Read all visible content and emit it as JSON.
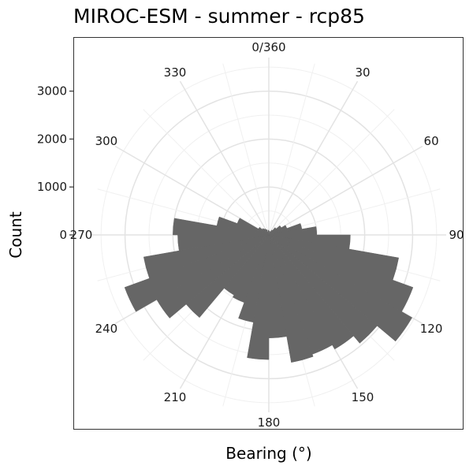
{
  "chart_data": {
    "type": "bar",
    "coord": "polar",
    "title": "MIROC-ESM - summer - rcp85",
    "xlabel": "Bearing (°)",
    "ylabel": "Count",
    "bin_width": 10,
    "angle_ticks": [
      {
        "value": 0,
        "label": "0/360"
      },
      {
        "value": 30,
        "label": "30"
      },
      {
        "value": 60,
        "label": "60"
      },
      {
        "value": 90,
        "label": "90"
      },
      {
        "value": 120,
        "label": "120"
      },
      {
        "value": 150,
        "label": "150"
      },
      {
        "value": 180,
        "label": "180"
      },
      {
        "value": 210,
        "label": "210"
      },
      {
        "value": 240,
        "label": "240"
      },
      {
        "value": 270,
        "label": "270"
      },
      {
        "value": 300,
        "label": "300"
      },
      {
        "value": 330,
        "label": "330"
      }
    ],
    "radial_ticks": [
      0,
      1000,
      2000,
      3000
    ],
    "radial_tick_labels": [
      "0",
      "1000",
      "2000",
      "3000"
    ],
    "ylim": [
      0,
      3700
    ],
    "grid": true,
    "categories": [
      "0",
      "10",
      "20",
      "30",
      "40",
      "50",
      "60",
      "70",
      "80",
      "90",
      "100",
      "110",
      "120",
      "130",
      "140",
      "150",
      "160",
      "170",
      "180",
      "190",
      "200",
      "210",
      "220",
      "230",
      "240",
      "250",
      "260",
      "270",
      "280",
      "290",
      "300",
      "310",
      "320",
      "330",
      "340",
      "350"
    ],
    "values": [
      80,
      30,
      80,
      120,
      200,
      300,
      400,
      700,
      1000,
      1700,
      2750,
      3200,
      3450,
      2950,
      2750,
      2650,
      2700,
      2150,
      2600,
      1850,
      1500,
      1450,
      2250,
      2700,
      3200,
      2650,
      1900,
      2000,
      1100,
      700,
      250,
      180,
      150,
      120,
      60,
      100
    ]
  }
}
